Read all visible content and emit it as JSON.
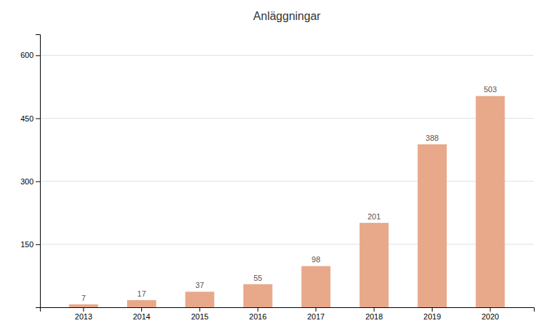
{
  "chart_data": {
    "type": "bar",
    "title": "Anläggningar",
    "categories": [
      "2013",
      "2014",
      "2015",
      "2016",
      "2017",
      "2018",
      "2019",
      "2020"
    ],
    "values": [
      7,
      17,
      37,
      55,
      98,
      201,
      388,
      503
    ],
    "color": "#e8a98a",
    "ylim": [
      0,
      650
    ],
    "yticks": [
      150,
      300,
      450,
      600
    ],
    "grid": true,
    "data_labels": true
  }
}
